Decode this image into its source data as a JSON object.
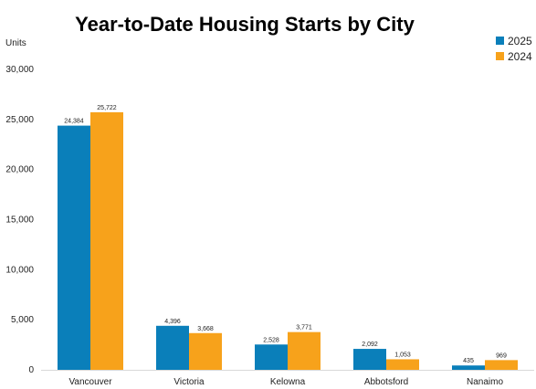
{
  "chart_data": {
    "type": "bar",
    "title": "Year-to-Date Housing Starts by City",
    "ylabel": "Units",
    "xlabel": "",
    "categories": [
      "Vancouver",
      "Victoria",
      "Kelowna",
      "Abbotsford",
      "Nanaimo"
    ],
    "series": [
      {
        "name": "2025",
        "color": "#0a7fba",
        "values": [
          24384,
          4396,
          2528,
          2092,
          435
        ],
        "labels": [
          "24,384",
          "4,396",
          "2,528",
          "2,092",
          "435"
        ]
      },
      {
        "name": "2024",
        "color": "#f7a21b",
        "values": [
          25722,
          3668,
          3771,
          1053,
          969
        ],
        "labels": [
          "25,722",
          "3,668",
          "3,771",
          "1,053",
          "969"
        ]
      }
    ],
    "ylim": [
      0,
      30000
    ],
    "yticks": [
      0,
      5000,
      10000,
      15000,
      20000,
      25000,
      30000
    ],
    "ytick_labels": [
      "0",
      "5,000",
      "10,000",
      "15,000",
      "20,000",
      "25,000",
      "30,000"
    ],
    "grid": false,
    "legend_position": "top-right"
  }
}
